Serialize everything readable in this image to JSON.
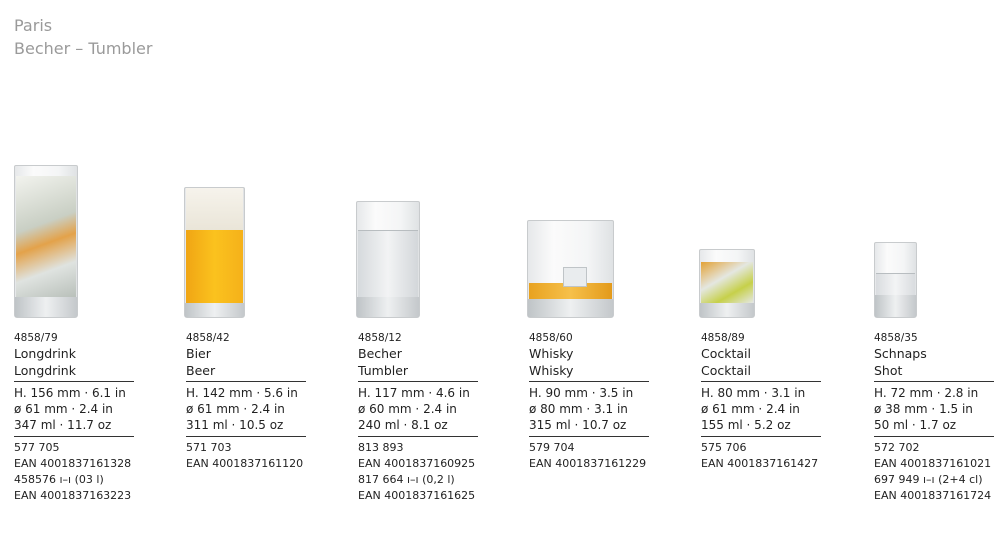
{
  "header": {
    "title": "Paris",
    "subtitle": "Becher – Tumbler"
  },
  "products": [
    {
      "code": "4858/79",
      "name_de": "Longdrink",
      "name_en": "Longdrink",
      "height": "H. 156 mm · 6.1 in",
      "diameter": "ø 61 mm · 2.4 in",
      "volume": "347 ml · 11.7 oz",
      "refs": [
        "577 705",
        "EAN 4001837161328",
        "458576 ı–ı (03 l)",
        "EAN 4001837163223"
      ]
    },
    {
      "code": "4858/42",
      "name_de": "Bier",
      "name_en": "Beer",
      "height": "H. 142 mm · 5.6 in",
      "diameter": "ø 61 mm · 2.4 in",
      "volume": "311 ml · 10.5 oz",
      "refs": [
        "571 703",
        "EAN 4001837161120"
      ]
    },
    {
      "code": "4858/12",
      "name_de": "Becher",
      "name_en": "Tumbler",
      "height": "H. 117 mm · 4.6 in",
      "diameter": "ø 60 mm · 2.4 in",
      "volume": "240 ml · 8.1 oz",
      "refs": [
        "813 893",
        "EAN 4001837160925",
        "817 664 ı–ı (0,2 l)",
        "EAN 4001837161625"
      ]
    },
    {
      "code": "4858/60",
      "name_de": "Whisky",
      "name_en": "Whisky",
      "height": "H. 90 mm · 3.5 in",
      "diameter": "ø 80 mm · 3.1 in",
      "volume": "315 ml · 10.7 oz",
      "refs": [
        "579 704",
        "EAN 4001837161229"
      ]
    },
    {
      "code": "4858/89",
      "name_de": "Cocktail",
      "name_en": "Cocktail",
      "height": "H. 80 mm · 3.1 in",
      "diameter": "ø 61 mm · 2.4 in",
      "volume": "155 ml · 5.2 oz",
      "refs": [
        "575 706",
        "EAN 4001837161427"
      ]
    },
    {
      "code": "4858/35",
      "name_de": "Schnaps",
      "name_en": "Shot",
      "height": "H. 72 mm · 2.8 in",
      "diameter": "ø 38 mm · 1.5 in",
      "volume": "50 ml · 1.7 oz",
      "refs": [
        "572 702",
        "EAN 4001837161021",
        "697 949 ı–ı (2+4 cl)",
        "EAN 4001837161724"
      ]
    }
  ]
}
